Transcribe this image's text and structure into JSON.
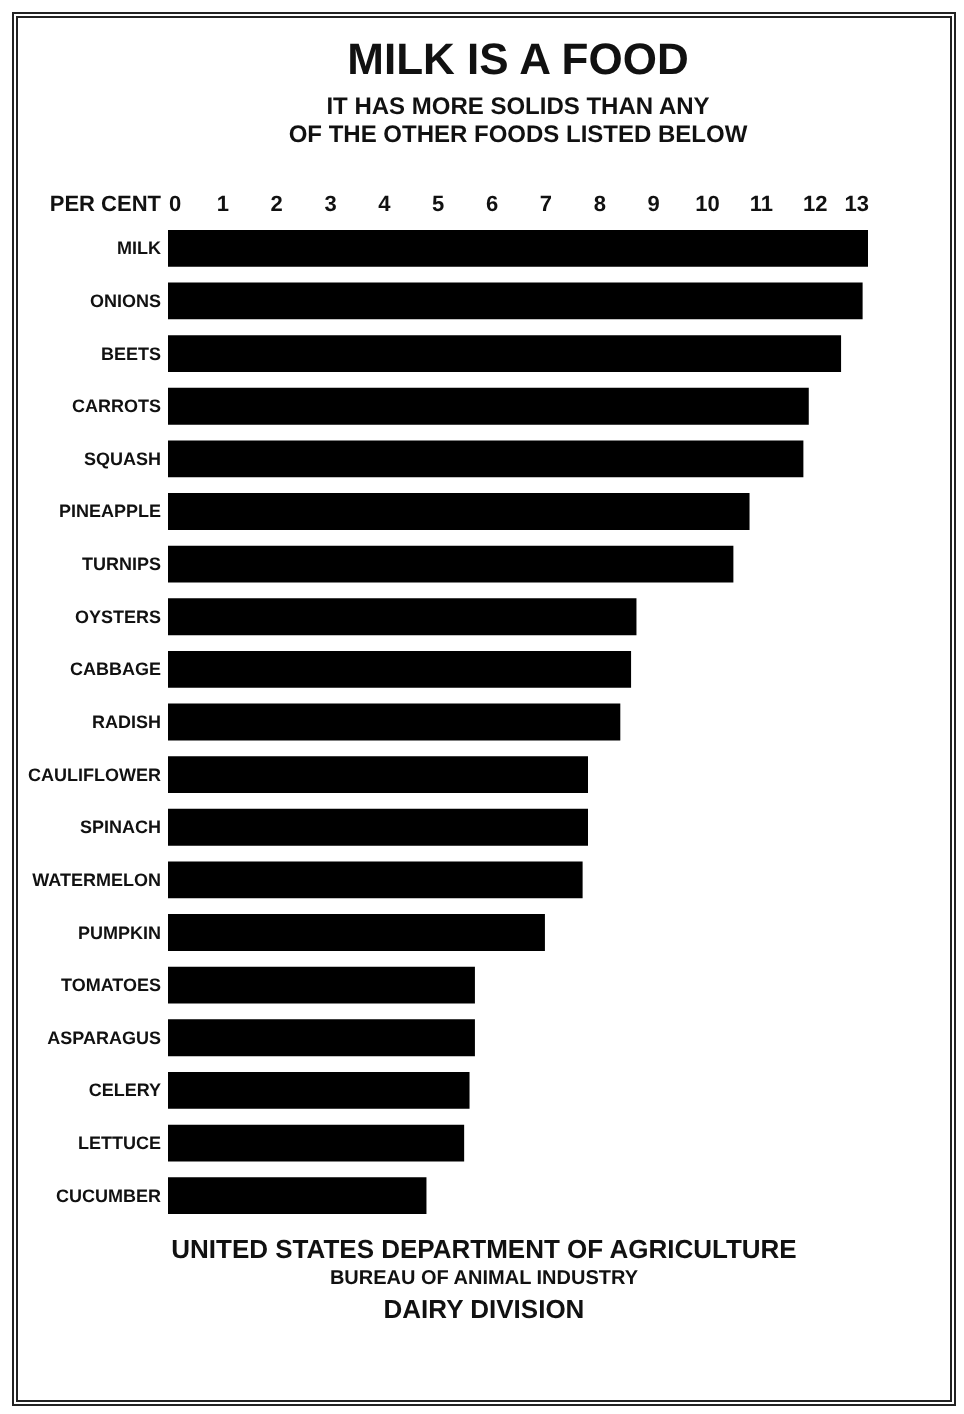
{
  "chart_data": {
    "type": "bar",
    "orientation": "horizontal",
    "title": "MILK IS A FOOD",
    "subtitle": "IT HAS MORE SOLIDS THAN ANY OF THE OTHER FOODS LISTED BELOW",
    "xlabel": "PER CENT",
    "categories": [
      "MILK",
      "ONIONS",
      "BEETS",
      "CARROTS",
      "SQUASH",
      "PINEAPPLE",
      "TURNIPS",
      "OYSTERS",
      "CABBAGE",
      "RADISH",
      "CAULIFLOWER",
      "SPINACH",
      "WATERMELON",
      "PUMPKIN",
      "TOMATOES",
      "ASPARAGUS",
      "CELERY",
      "LETTUCE",
      "CUCUMBER"
    ],
    "values": [
      13.0,
      12.9,
      12.5,
      11.9,
      11.8,
      10.8,
      10.5,
      8.7,
      8.6,
      8.4,
      7.8,
      7.8,
      7.7,
      7.0,
      5.7,
      5.7,
      5.6,
      5.5,
      4.8
    ],
    "color": "#000000",
    "xlim": [
      0,
      13
    ],
    "xticks": [
      0,
      1,
      2,
      3,
      4,
      5,
      6,
      7,
      8,
      9,
      10,
      11,
      12,
      13
    ],
    "grid": false,
    "annotations": [
      "UNITED STATES DEPARTMENT OF AGRICULTURE",
      "BUREAU OF ANIMAL INDUSTRY",
      "DAIRY DIVISION"
    ]
  }
}
